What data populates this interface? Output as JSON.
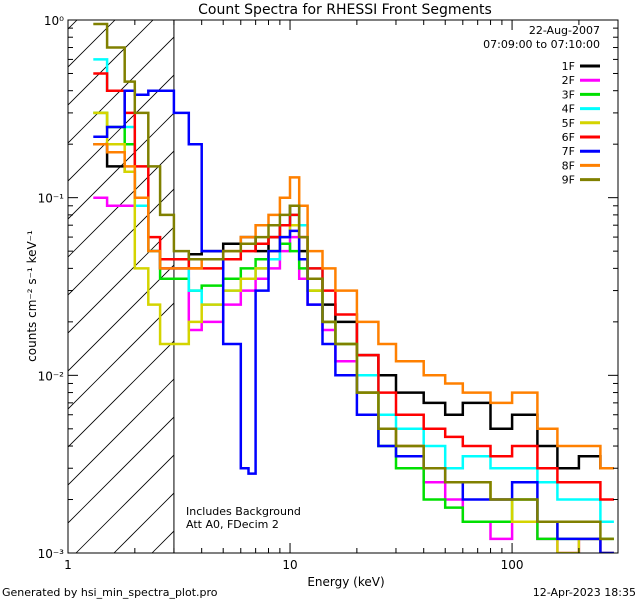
{
  "chart_data": {
    "type": "line",
    "title": "Count Spectra for RHESSI Front Segments",
    "xlabel": "Energy (keV)",
    "ylabel": "counts cm⁻² s⁻¹ keV⁻¹",
    "xscale": "log",
    "yscale": "log",
    "xlim": [
      1.0,
      300.0
    ],
    "ylim": [
      0.001,
      1.0
    ],
    "x_tick_labels": [
      {
        "value": 1,
        "label": "1"
      },
      {
        "value": 10,
        "label": "10"
      },
      {
        "value": 100,
        "label": "100"
      }
    ],
    "y_tick_labels": [
      {
        "value": 1,
        "label": "10⁰"
      },
      {
        "value": 0.1,
        "label": "10⁻¹"
      },
      {
        "value": 0.01,
        "label": "10⁻²"
      },
      {
        "value": 0.001,
        "label": "10⁻³"
      }
    ],
    "date_label": "22-Aug-2007",
    "time_range_label": "07:09:00 to 07:10:00",
    "annotations": [
      "Includes Background",
      "Att A0, FDecim 2"
    ],
    "shaded_region": {
      "x_start": 1.0,
      "x_end": 3.0,
      "description": "hatched"
    },
    "series": [
      {
        "name": "1F",
        "color": "#000000",
        "points": [
          [
            1.3,
            0.2
          ],
          [
            1.5,
            0.15
          ],
          [
            1.8,
            0.14
          ],
          [
            2.0,
            0.1
          ],
          [
            2.3,
            0.05
          ],
          [
            2.6,
            0.04
          ],
          [
            3.0,
            0.04
          ],
          [
            3.5,
            0.048
          ],
          [
            4.0,
            0.05
          ],
          [
            5.0,
            0.055
          ],
          [
            6.0,
            0.06
          ],
          [
            7.0,
            0.05
          ],
          [
            8.0,
            0.06
          ],
          [
            9.0,
            0.07
          ],
          [
            10.0,
            0.09
          ],
          [
            11.0,
            0.05
          ],
          [
            12.0,
            0.035
          ],
          [
            14.0,
            0.025
          ],
          [
            16.0,
            0.02
          ],
          [
            20.0,
            0.013
          ],
          [
            25.0,
            0.01
          ],
          [
            30.0,
            0.008
          ],
          [
            40.0,
            0.007
          ],
          [
            50.0,
            0.006
          ],
          [
            60.0,
            0.007
          ],
          [
            80.0,
            0.005
          ],
          [
            100.0,
            0.006
          ],
          [
            130.0,
            0.004
          ],
          [
            160.0,
            0.003
          ],
          [
            200.0,
            0.0035
          ],
          [
            250.0,
            0.003
          ]
        ]
      },
      {
        "name": "2F",
        "color": "#ff00ff",
        "points": [
          [
            1.3,
            0.1
          ],
          [
            1.5,
            0.09
          ],
          [
            1.8,
            0.09
          ],
          [
            2.0,
            0.09
          ],
          [
            2.3,
            0.05
          ],
          [
            2.6,
            0.04
          ],
          [
            3.0,
            0.04
          ],
          [
            3.5,
            0.018
          ],
          [
            4.0,
            0.02
          ],
          [
            5.0,
            0.025
          ],
          [
            6.0,
            0.03
          ],
          [
            7.0,
            0.035
          ],
          [
            8.0,
            0.04
          ],
          [
            9.0,
            0.05
          ],
          [
            10.0,
            0.06
          ],
          [
            11.0,
            0.035
          ],
          [
            12.0,
            0.025
          ],
          [
            14.0,
            0.018
          ],
          [
            16.0,
            0.012
          ],
          [
            20.0,
            0.008
          ],
          [
            25.0,
            0.005
          ],
          [
            30.0,
            0.004
          ],
          [
            40.0,
            0.0025
          ],
          [
            50.0,
            0.002
          ],
          [
            60.0,
            0.0015
          ],
          [
            80.0,
            0.0012
          ],
          [
            100.0,
            0.0015
          ],
          [
            130.0,
            0.0012
          ],
          [
            160.0,
            0.001
          ],
          [
            200.0,
            0.0012
          ],
          [
            250.0,
            0.001
          ]
        ]
      },
      {
        "name": "3F",
        "color": "#00e000",
        "points": [
          [
            1.3,
            0.3
          ],
          [
            1.5,
            0.25
          ],
          [
            1.8,
            0.2
          ],
          [
            2.0,
            0.1
          ],
          [
            2.3,
            0.05
          ],
          [
            2.6,
            0.035
          ],
          [
            3.0,
            0.035
          ],
          [
            3.5,
            0.03
          ],
          [
            4.0,
            0.032
          ],
          [
            5.0,
            0.035
          ],
          [
            6.0,
            0.04
          ],
          [
            7.0,
            0.045
          ],
          [
            8.0,
            0.05
          ],
          [
            9.0,
            0.055
          ],
          [
            10.0,
            0.05
          ],
          [
            11.0,
            0.04
          ],
          [
            12.0,
            0.03
          ],
          [
            14.0,
            0.02
          ],
          [
            16.0,
            0.015
          ],
          [
            20.0,
            0.008
          ],
          [
            25.0,
            0.004
          ],
          [
            30.0,
            0.003
          ],
          [
            40.0,
            0.002
          ],
          [
            50.0,
            0.0018
          ],
          [
            60.0,
            0.0015
          ],
          [
            80.0,
            0.0015
          ],
          [
            100.0,
            0.002
          ],
          [
            130.0,
            0.0012
          ],
          [
            160.0,
            0.0012
          ],
          [
            200.0,
            0.0012
          ],
          [
            250.0,
            0.0012
          ]
        ]
      },
      {
        "name": "4F",
        "color": "#00ffff",
        "points": [
          [
            1.3,
            0.6
          ],
          [
            1.5,
            0.4
          ],
          [
            1.8,
            0.25
          ],
          [
            2.0,
            0.09
          ],
          [
            2.3,
            0.05
          ],
          [
            2.6,
            0.045
          ],
          [
            3.0,
            0.045
          ],
          [
            3.5,
            0.03
          ],
          [
            4.0,
            0.025
          ],
          [
            5.0,
            0.03
          ],
          [
            6.0,
            0.035
          ],
          [
            7.0,
            0.04
          ],
          [
            8.0,
            0.045
          ],
          [
            9.0,
            0.06
          ],
          [
            10.0,
            0.08
          ],
          [
            11.0,
            0.07
          ],
          [
            12.0,
            0.04
          ],
          [
            14.0,
            0.02
          ],
          [
            16.0,
            0.015
          ],
          [
            20.0,
            0.01
          ],
          [
            25.0,
            0.006
          ],
          [
            30.0,
            0.005
          ],
          [
            40.0,
            0.004
          ],
          [
            50.0,
            0.003
          ],
          [
            60.0,
            0.0035
          ],
          [
            80.0,
            0.003
          ],
          [
            100.0,
            0.003
          ],
          [
            130.0,
            0.0025
          ],
          [
            160.0,
            0.002
          ],
          [
            200.0,
            0.002
          ],
          [
            250.0,
            0.0015
          ]
        ]
      },
      {
        "name": "5F",
        "color": "#d4d400",
        "points": [
          [
            1.3,
            0.3
          ],
          [
            1.5,
            0.2
          ],
          [
            1.8,
            0.14
          ],
          [
            2.0,
            0.04
          ],
          [
            2.3,
            0.025
          ],
          [
            2.6,
            0.015
          ],
          [
            3.0,
            0.015
          ],
          [
            3.5,
            0.02
          ],
          [
            4.0,
            0.025
          ],
          [
            5.0,
            0.03
          ],
          [
            6.0,
            0.035
          ],
          [
            7.0,
            0.04
          ],
          [
            8.0,
            0.05
          ],
          [
            9.0,
            0.06
          ],
          [
            10.0,
            0.07
          ],
          [
            11.0,
            0.045
          ],
          [
            12.0,
            0.03
          ],
          [
            14.0,
            0.02
          ],
          [
            16.0,
            0.015
          ],
          [
            20.0,
            0.008
          ],
          [
            25.0,
            0.005
          ],
          [
            30.0,
            0.004
          ],
          [
            40.0,
            0.003
          ],
          [
            50.0,
            0.0025
          ],
          [
            60.0,
            0.0025
          ],
          [
            80.0,
            0.002
          ],
          [
            100.0,
            0.0015
          ],
          [
            130.0,
            0.0015
          ],
          [
            160.0,
            0.001
          ],
          [
            200.0,
            0.0012
          ],
          [
            250.0,
            0.001
          ]
        ]
      },
      {
        "name": "6F",
        "color": "#ff0000",
        "points": [
          [
            1.3,
            0.5
          ],
          [
            1.5,
            0.4
          ],
          [
            1.8,
            0.3
          ],
          [
            2.0,
            0.15
          ],
          [
            2.3,
            0.06
          ],
          [
            2.6,
            0.045
          ],
          [
            3.0,
            0.045
          ],
          [
            3.5,
            0.04
          ],
          [
            4.0,
            0.04
          ],
          [
            5.0,
            0.045
          ],
          [
            6.0,
            0.05
          ],
          [
            7.0,
            0.055
          ],
          [
            8.0,
            0.06
          ],
          [
            9.0,
            0.07
          ],
          [
            10.0,
            0.08
          ],
          [
            11.0,
            0.06
          ],
          [
            12.0,
            0.04
          ],
          [
            14.0,
            0.03
          ],
          [
            16.0,
            0.022
          ],
          [
            20.0,
            0.013
          ],
          [
            25.0,
            0.008
          ],
          [
            30.0,
            0.006
          ],
          [
            40.0,
            0.005
          ],
          [
            50.0,
            0.0045
          ],
          [
            60.0,
            0.004
          ],
          [
            80.0,
            0.0035
          ],
          [
            100.0,
            0.004
          ],
          [
            130.0,
            0.003
          ],
          [
            160.0,
            0.0025
          ],
          [
            200.0,
            0.0025
          ],
          [
            250.0,
            0.002
          ]
        ]
      },
      {
        "name": "7F",
        "color": "#0000ff",
        "points": [
          [
            1.3,
            0.22
          ],
          [
            1.5,
            0.25
          ],
          [
            1.8,
            0.4
          ],
          [
            2.0,
            0.38
          ],
          [
            2.3,
            0.4
          ],
          [
            2.6,
            0.4
          ],
          [
            3.0,
            0.3
          ],
          [
            3.5,
            0.2
          ],
          [
            4.0,
            0.05
          ],
          [
            5.0,
            0.015
          ],
          [
            6.0,
            0.003
          ],
          [
            6.5,
            0.0028
          ],
          [
            7.0,
            0.03
          ],
          [
            8.0,
            0.05
          ],
          [
            9.0,
            0.06
          ],
          [
            10.0,
            0.065
          ],
          [
            11.0,
            0.045
          ],
          [
            12.0,
            0.025
          ],
          [
            14.0,
            0.015
          ],
          [
            16.0,
            0.01
          ],
          [
            20.0,
            0.006
          ],
          [
            25.0,
            0.004
          ],
          [
            30.0,
            0.0035
          ],
          [
            40.0,
            0.003
          ],
          [
            50.0,
            0.0025
          ],
          [
            60.0,
            0.002
          ],
          [
            80.0,
            0.002
          ],
          [
            100.0,
            0.0025
          ],
          [
            130.0,
            0.0015
          ],
          [
            160.0,
            0.0012
          ],
          [
            200.0,
            0.0012
          ],
          [
            250.0,
            0.001
          ]
        ]
      },
      {
        "name": "8F",
        "color": "#ff8000",
        "points": [
          [
            1.3,
            0.2
          ],
          [
            1.5,
            0.18
          ],
          [
            1.8,
            0.15
          ],
          [
            2.0,
            0.1
          ],
          [
            2.3,
            0.05
          ],
          [
            2.6,
            0.04
          ],
          [
            3.0,
            0.04
          ],
          [
            3.5,
            0.04
          ],
          [
            4.0,
            0.045
          ],
          [
            5.0,
            0.05
          ],
          [
            6.0,
            0.06
          ],
          [
            7.0,
            0.07
          ],
          [
            8.0,
            0.08
          ],
          [
            9.0,
            0.1
          ],
          [
            10.0,
            0.13
          ],
          [
            11.0,
            0.09
          ],
          [
            12.0,
            0.05
          ],
          [
            14.0,
            0.04
          ],
          [
            16.0,
            0.03
          ],
          [
            20.0,
            0.02
          ],
          [
            25.0,
            0.015
          ],
          [
            30.0,
            0.012
          ],
          [
            40.0,
            0.01
          ],
          [
            50.0,
            0.009
          ],
          [
            60.0,
            0.008
          ],
          [
            80.0,
            0.007
          ],
          [
            100.0,
            0.008
          ],
          [
            130.0,
            0.005
          ],
          [
            160.0,
            0.004
          ],
          [
            200.0,
            0.004
          ],
          [
            250.0,
            0.003
          ]
        ]
      },
      {
        "name": "9F",
        "color": "#808000",
        "points": [
          [
            1.3,
            0.95
          ],
          [
            1.5,
            0.7
          ],
          [
            1.8,
            0.45
          ],
          [
            2.0,
            0.3
          ],
          [
            2.3,
            0.15
          ],
          [
            2.6,
            0.08
          ],
          [
            3.0,
            0.05
          ],
          [
            3.5,
            0.045
          ],
          [
            4.0,
            0.045
          ],
          [
            5.0,
            0.05
          ],
          [
            6.0,
            0.055
          ],
          [
            7.0,
            0.06
          ],
          [
            8.0,
            0.07
          ],
          [
            9.0,
            0.08
          ],
          [
            10.0,
            0.09
          ],
          [
            11.0,
            0.06
          ],
          [
            12.0,
            0.035
          ],
          [
            14.0,
            0.02
          ],
          [
            16.0,
            0.015
          ],
          [
            20.0,
            0.008
          ],
          [
            25.0,
            0.005
          ],
          [
            30.0,
            0.004
          ],
          [
            40.0,
            0.003
          ],
          [
            50.0,
            0.0025
          ],
          [
            60.0,
            0.0025
          ],
          [
            80.0,
            0.002
          ],
          [
            100.0,
            0.002
          ],
          [
            130.0,
            0.0015
          ],
          [
            160.0,
            0.0015
          ],
          [
            200.0,
            0.0015
          ],
          [
            250.0,
            0.0012
          ]
        ]
      }
    ]
  },
  "footer": {
    "generated_by": "Generated by  hsi_min_spectra_plot.pro",
    "timestamp": "12-Apr-2023 18:35"
  }
}
